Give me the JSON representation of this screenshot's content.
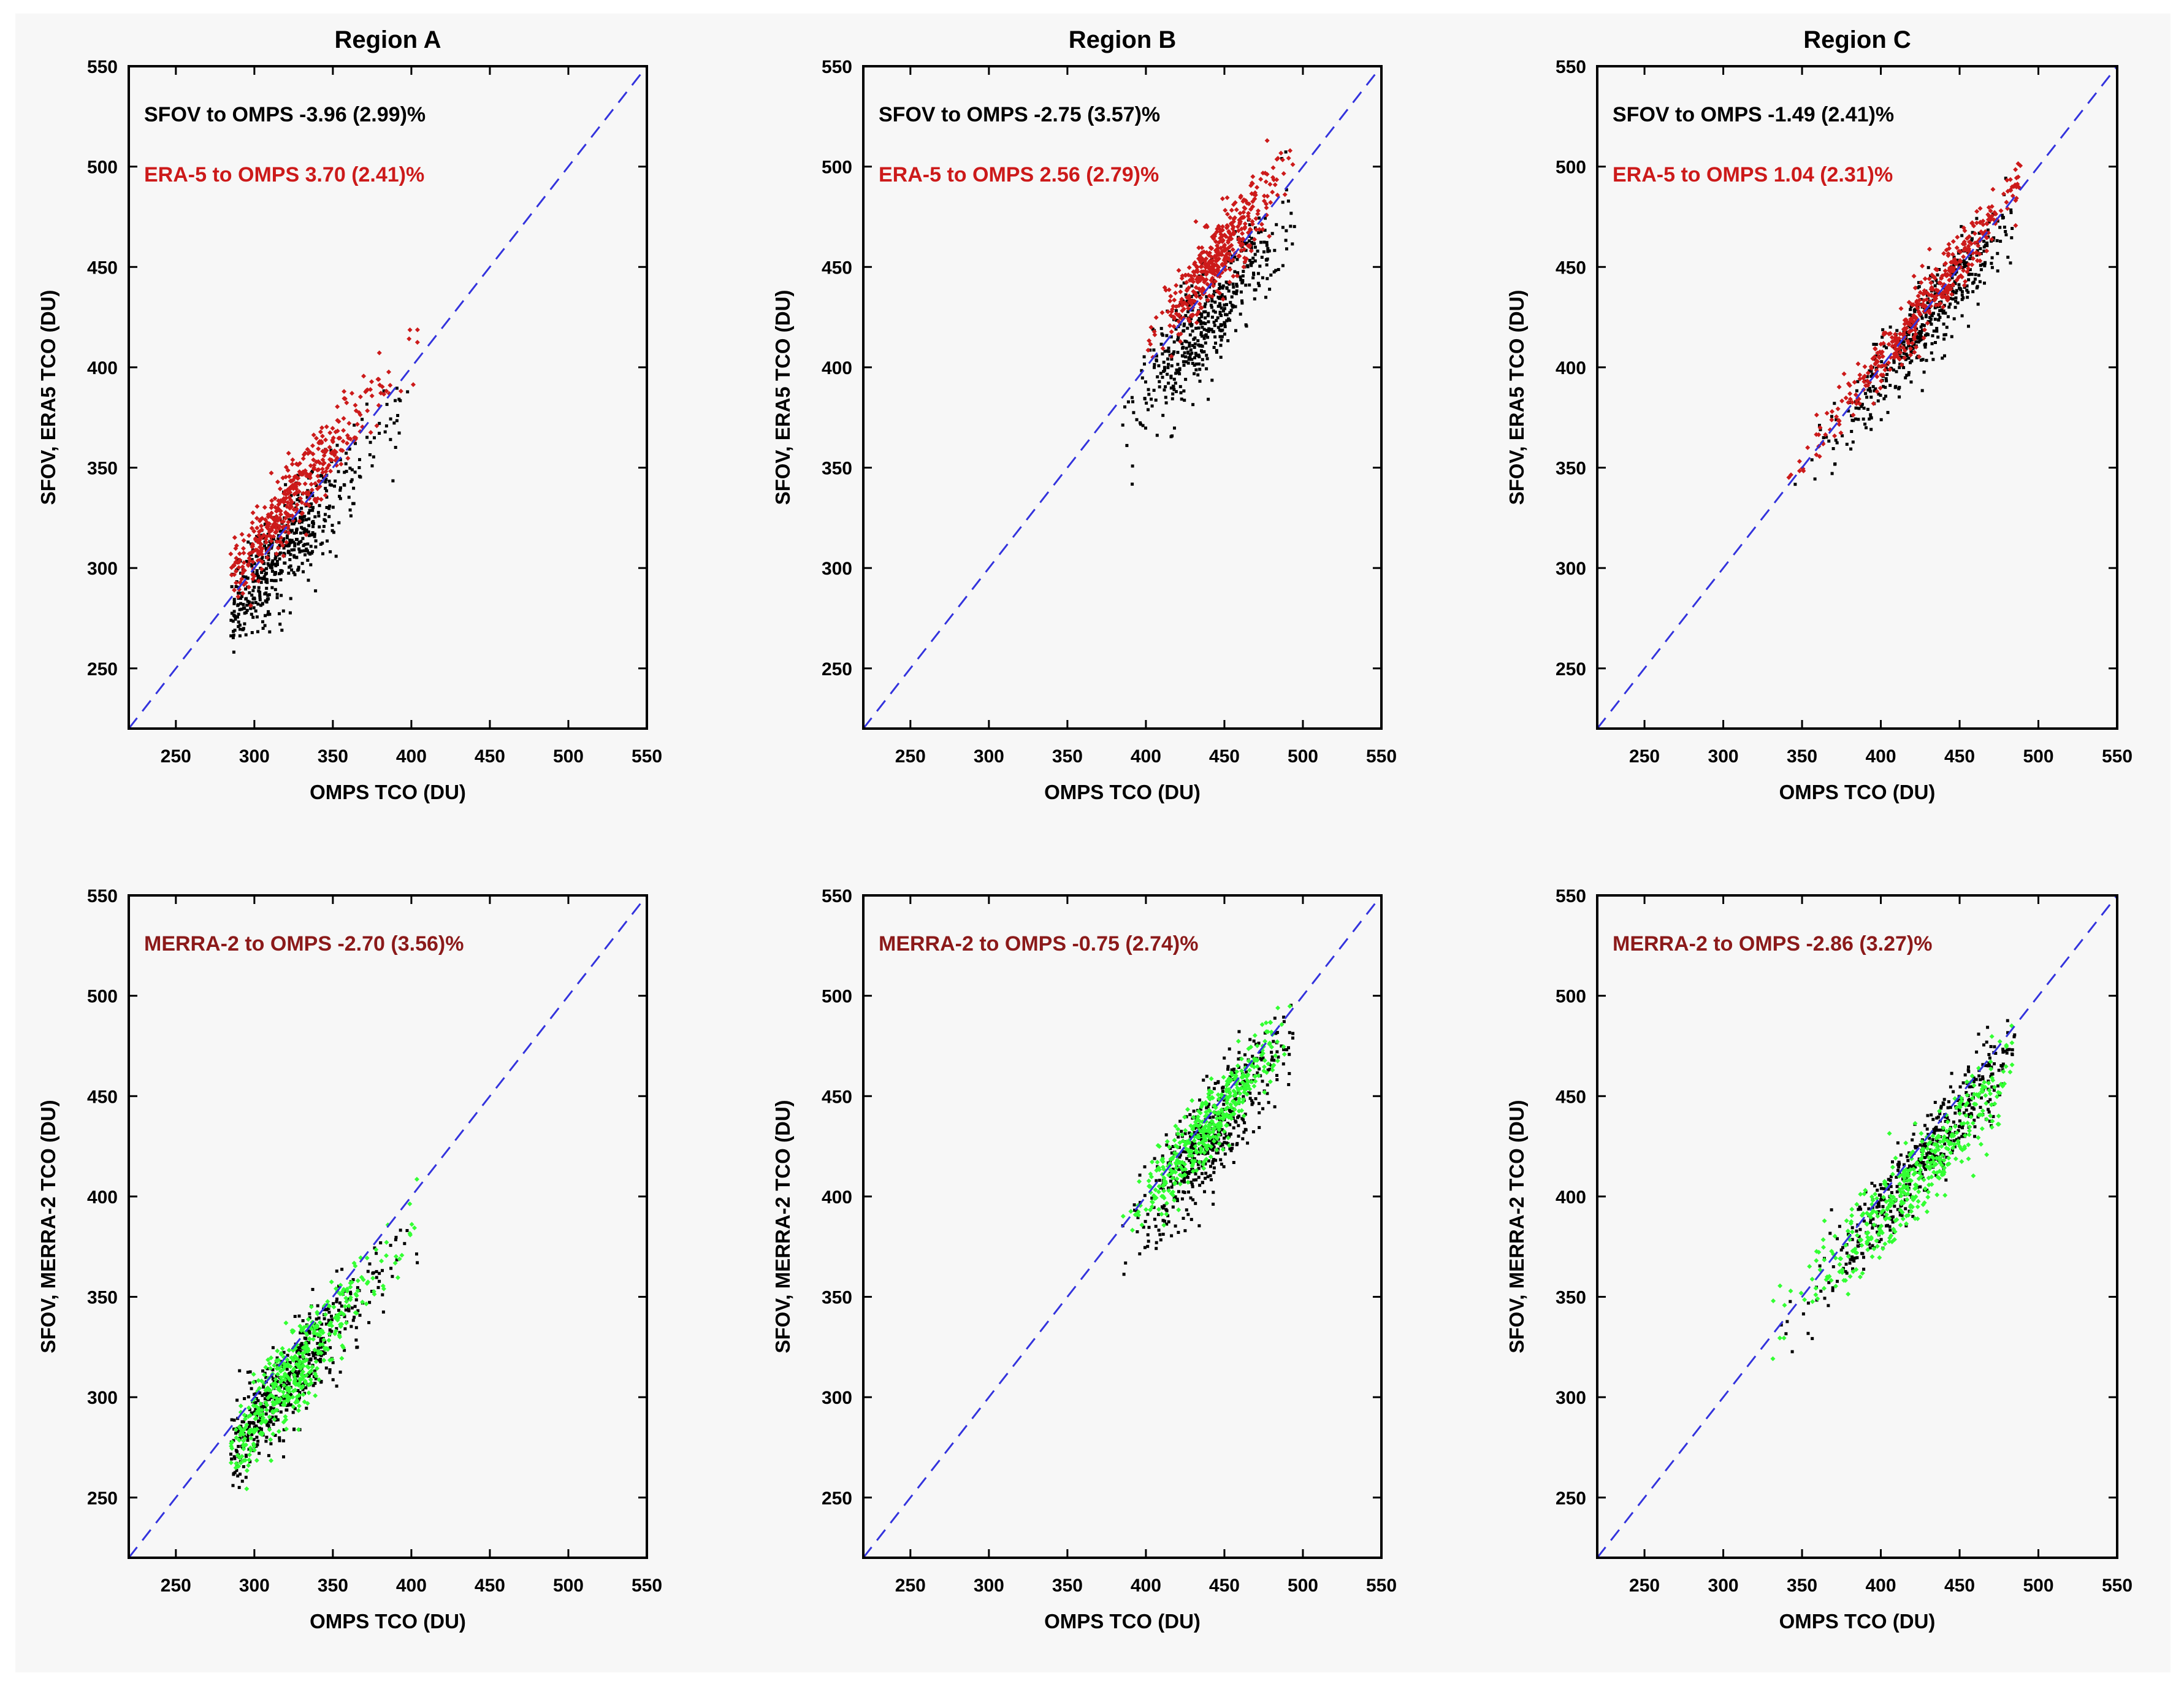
{
  "colors": {
    "background": "#f7f7f7",
    "sfov_points": "#000000",
    "era5_points": "#cc1a1a",
    "merra2_points": "#33ff33",
    "reference_line": "#3333dd",
    "merra2_text": "#8b1a1a",
    "era5_text": "#cc1a1a"
  },
  "chart_data": [
    {
      "type": "scatter",
      "row": "top",
      "title": "Region A",
      "xlabel": "OMPS TCO (DU)",
      "ylabel": "SFOV, ERA5 TCO  (DU)",
      "xlim": [
        220,
        550
      ],
      "ylim": [
        220,
        550
      ],
      "xticks": [
        "250",
        "300",
        "350",
        "400",
        "450",
        "500",
        "550"
      ],
      "yticks": [
        "250",
        "300",
        "350",
        "400",
        "450",
        "500",
        "550"
      ],
      "reference_line": {
        "from": [
          220,
          220
        ],
        "to": [
          550,
          550
        ],
        "style": "dashed"
      },
      "annotations": [
        {
          "text": "SFOV to OMPS -3.96 (2.99)%",
          "color": "#000000"
        },
        {
          "text": "ERA-5 to OMPS 3.70 (2.41)%",
          "color": "#cc1a1a"
        }
      ],
      "series": [
        {
          "name": "SFOV",
          "color": "#000000",
          "cluster": {
            "x_range": [
              285,
              400
            ],
            "center": [
              312,
              303
            ],
            "slope": 0.92,
            "intercept_offset": -12,
            "spread": 12,
            "n": 520
          }
        },
        {
          "name": "ERA-5",
          "color": "#cc1a1a",
          "cluster": {
            "x_range": [
              285,
              405
            ],
            "center": [
              320,
              330
            ],
            "slope": 1.0,
            "intercept_offset": 11,
            "spread": 9,
            "n": 420
          }
        }
      ]
    },
    {
      "type": "scatter",
      "row": "top",
      "title": "Region B",
      "xlabel": "OMPS TCO (DU)",
      "ylabel": "SFOV, ERA5 TCO  (DU)",
      "xlim": [
        220,
        550
      ],
      "ylim": [
        220,
        550
      ],
      "xticks": [
        "250",
        "300",
        "350",
        "400",
        "450",
        "500",
        "550"
      ],
      "yticks": [
        "250",
        "300",
        "350",
        "400",
        "450",
        "500",
        "550"
      ],
      "reference_line": {
        "from": [
          220,
          220
        ],
        "to": [
          550,
          550
        ],
        "style": "dashed"
      },
      "annotations": [
        {
          "text": "SFOV to OMPS -2.75 (3.57)%",
          "color": "#000000"
        },
        {
          "text": "ERA-5 to OMPS 2.56 (2.79)%",
          "color": "#cc1a1a"
        }
      ],
      "series": [
        {
          "name": "SFOV",
          "color": "#000000",
          "cluster": {
            "x_range": [
              385,
              495
            ],
            "center": [
              440,
              425
            ],
            "slope": 0.95,
            "intercept_offset": -12,
            "spread": 13,
            "n": 480
          }
        },
        {
          "name": "ERA-5",
          "color": "#cc1a1a",
          "cluster": {
            "x_range": [
              400,
              495
            ],
            "center": [
              445,
              455
            ],
            "slope": 0.95,
            "intercept_offset": 10,
            "spread": 9,
            "n": 420
          }
        }
      ]
    },
    {
      "type": "scatter",
      "row": "top",
      "title": "Region C",
      "xlabel": "OMPS TCO (DU)",
      "ylabel": "SFOV, ERA5 TCO  (DU)",
      "xlim": [
        220,
        550
      ],
      "ylim": [
        220,
        550
      ],
      "xticks": [
        "250",
        "300",
        "350",
        "400",
        "450",
        "500",
        "550"
      ],
      "yticks": [
        "250",
        "300",
        "350",
        "400",
        "450",
        "500",
        "550"
      ],
      "reference_line": {
        "from": [
          220,
          220
        ],
        "to": [
          550,
          550
        ],
        "style": "dashed"
      },
      "annotations": [
        {
          "text": "SFOV to OMPS -1.49 (2.41)%",
          "color": "#000000"
        },
        {
          "text": "ERA-5 to OMPS 1.04 (2.31)%",
          "color": "#cc1a1a"
        }
      ],
      "series": [
        {
          "name": "SFOV",
          "color": "#000000",
          "cluster": {
            "x_range": [
              345,
              485
            ],
            "center": [
              430,
              423
            ],
            "slope": 0.98,
            "intercept_offset": -6,
            "spread": 10,
            "n": 460
          }
        },
        {
          "name": "ERA-5",
          "color": "#cc1a1a",
          "cluster": {
            "x_range": [
              340,
              490
            ],
            "center": [
              430,
              433
            ],
            "slope": 1.0,
            "intercept_offset": 4,
            "spread": 7,
            "n": 420
          }
        }
      ]
    },
    {
      "type": "scatter",
      "row": "bottom",
      "title": "",
      "xlabel": "OMPS TCO (DU)",
      "ylabel": "SFOV, MERRA-2 TCO  (DU)",
      "xlim": [
        220,
        550
      ],
      "ylim": [
        220,
        550
      ],
      "xticks": [
        "250",
        "300",
        "350",
        "400",
        "450",
        "500",
        "550"
      ],
      "yticks": [
        "250",
        "300",
        "350",
        "400",
        "450",
        "500",
        "550"
      ],
      "reference_line": {
        "from": [
          220,
          220
        ],
        "to": [
          550,
          550
        ],
        "style": "dashed"
      },
      "annotations": [
        {
          "text": "MERRA-2 to OMPS -2.70 (3.56)%",
          "color": "#8b1a1a"
        }
      ],
      "series": [
        {
          "name": "SFOV",
          "color": "#000000",
          "cluster": {
            "x_range": [
              285,
              405
            ],
            "center": [
              315,
              302
            ],
            "slope": 0.92,
            "intercept_offset": -10,
            "spread": 12,
            "n": 500
          }
        },
        {
          "name": "MERRA-2",
          "color": "#33ff33",
          "cluster": {
            "x_range": [
              285,
              405
            ],
            "center": [
              320,
              308
            ],
            "slope": 0.98,
            "intercept_offset": -6,
            "spread": 11,
            "n": 420
          }
        }
      ]
    },
    {
      "type": "scatter",
      "row": "bottom",
      "title": "",
      "xlabel": "OMPS TCO (DU)",
      "ylabel": "SFOV, MERRA-2 TCO  (DU)",
      "xlim": [
        220,
        550
      ],
      "ylim": [
        220,
        550
      ],
      "xticks": [
        "250",
        "300",
        "350",
        "400",
        "450",
        "500",
        "550"
      ],
      "yticks": [
        "250",
        "300",
        "350",
        "400",
        "450",
        "500",
        "550"
      ],
      "reference_line": {
        "from": [
          220,
          220
        ],
        "to": [
          550,
          550
        ],
        "style": "dashed"
      },
      "annotations": [
        {
          "text": "MERRA-2 to OMPS -0.75 (2.74)%",
          "color": "#8b1a1a"
        }
      ],
      "series": [
        {
          "name": "SFOV",
          "color": "#000000",
          "cluster": {
            "x_range": [
              385,
              495
            ],
            "center": [
              440,
              428
            ],
            "slope": 0.95,
            "intercept_offset": -10,
            "spread": 13,
            "n": 480
          }
        },
        {
          "name": "MERRA-2",
          "color": "#33ff33",
          "cluster": {
            "x_range": [
              385,
              495
            ],
            "center": [
              440,
              436
            ],
            "slope": 0.95,
            "intercept_offset": -3,
            "spread": 9,
            "n": 420
          }
        }
      ]
    },
    {
      "type": "scatter",
      "row": "bottom",
      "title": "",
      "xlabel": "OMPS TCO (DU)",
      "ylabel": "SFOV, MERRA-2 TCO  (DU)",
      "xlim": [
        220,
        550
      ],
      "ylim": [
        220,
        550
      ],
      "xticks": [
        "250",
        "300",
        "350",
        "400",
        "450",
        "500",
        "550"
      ],
      "yticks": [
        "250",
        "300",
        "350",
        "400",
        "450",
        "500",
        "550"
      ],
      "reference_line": {
        "from": [
          220,
          220
        ],
        "to": [
          550,
          550
        ],
        "style": "dashed"
      },
      "annotations": [
        {
          "text": "MERRA-2 to OMPS -2.86 (3.27)%",
          "color": "#8b1a1a"
        }
      ],
      "series": [
        {
          "name": "SFOV",
          "color": "#000000",
          "cluster": {
            "x_range": [
              335,
              485
            ],
            "center": [
              430,
              422
            ],
            "slope": 1.0,
            "intercept_offset": -5,
            "spread": 10,
            "n": 460
          }
        },
        {
          "name": "MERRA-2",
          "color": "#33ff33",
          "cluster": {
            "x_range": [
              330,
              485
            ],
            "center": [
              425,
              412
            ],
            "slope": 0.85,
            "intercept_offset": -12,
            "spread": 10,
            "n": 420
          }
        }
      ]
    }
  ]
}
